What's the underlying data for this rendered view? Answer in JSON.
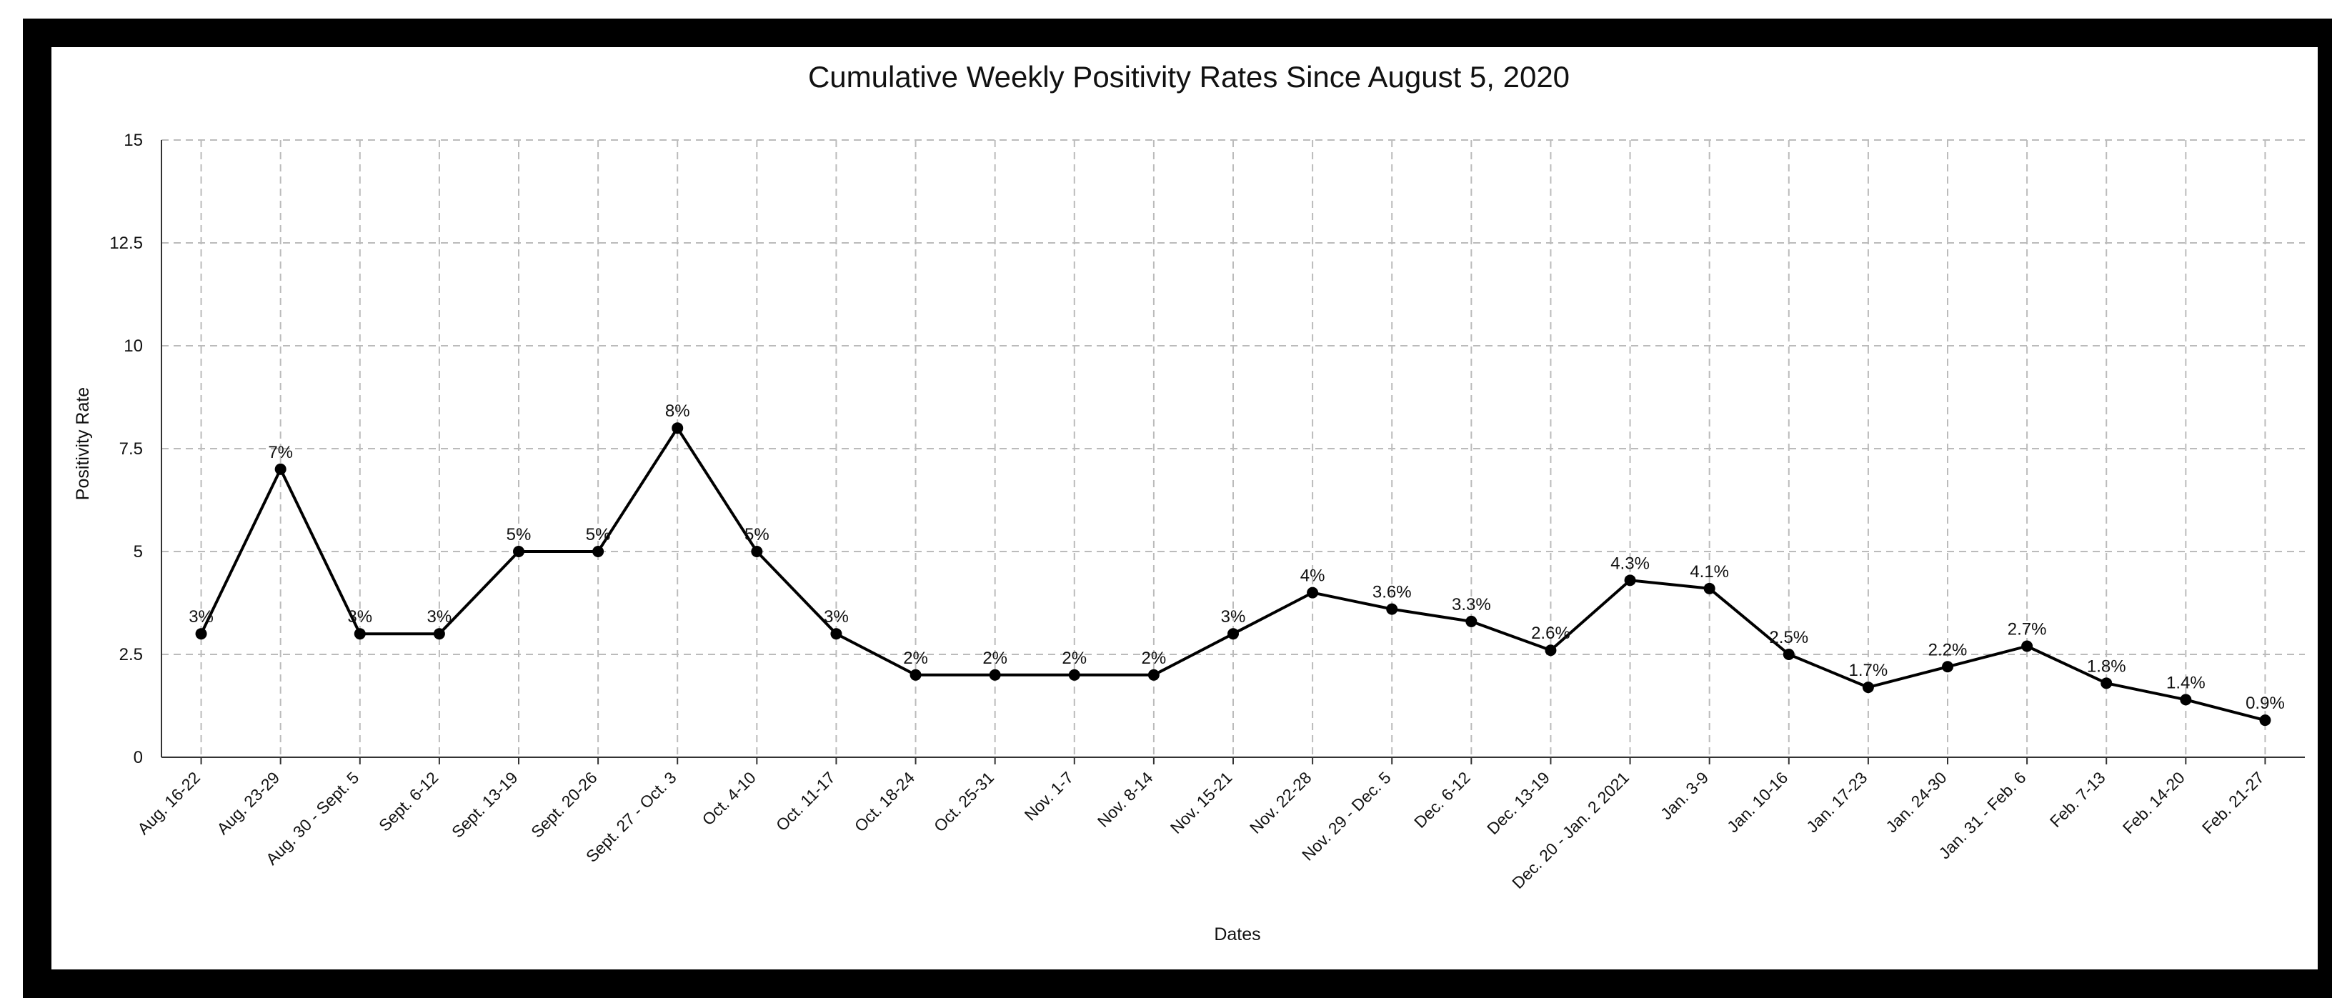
{
  "chart_data": {
    "type": "line",
    "title": "Cumulative Weekly Positivity Rates Since August 5, 2020",
    "xlabel": "Dates",
    "ylabel": "Positivity Rate",
    "ylim": [
      0,
      15
    ],
    "yticks": [
      "0",
      "2.5",
      "5",
      "7.5",
      "10",
      "12.5",
      "15"
    ],
    "grid": true,
    "legend": "none",
    "line_color": "#000000",
    "grid_color": "#bbbbbb",
    "categories": [
      "Aug. 16-22",
      "Aug. 23-29",
      "Aug. 30 - Sept. 5",
      "Sept. 6-12",
      "Sept. 13-19",
      "Sept. 20-26",
      "Sept. 27 - Oct. 3",
      "Oct. 4-10",
      "Oct. 11-17",
      "Oct. 18-24",
      "Oct. 25-31",
      "Nov. 1-7",
      "Nov. 8-14",
      "Nov. 15-21",
      "Nov. 22-28",
      "Nov. 29 - Dec. 5",
      "Dec. 6-12",
      "Dec. 13-19",
      "Dec. 20 - Jan. 2 2021",
      "Jan. 3-9",
      "Jan. 10-16",
      "Jan. 17-23",
      "Jan. 24-30",
      "Jan. 31 - Feb. 6",
      "Feb. 7-13",
      "Feb. 14-20",
      "Feb. 21-27"
    ],
    "values": [
      3,
      7,
      3,
      3,
      5,
      5,
      8,
      5,
      3,
      2,
      2,
      2,
      2,
      3,
      4,
      3.6,
      3.3,
      2.6,
      4.3,
      4.1,
      2.5,
      1.7,
      2.2,
      2.7,
      1.8,
      1.4,
      0.9
    ],
    "data_labels": [
      "3%",
      "7%",
      "3%",
      "3%",
      "5%",
      "5%",
      "8%",
      "5%",
      "3%",
      "2%",
      "2%",
      "2%",
      "2%",
      "3%",
      "4%",
      "3.6%",
      "3.3%",
      "2.6%",
      "4.3%",
      "4.1%",
      "2.5%",
      "1.7%",
      "2.2%",
      "2.7%",
      "1.8%",
      "1.4%",
      "0.9%"
    ]
  }
}
